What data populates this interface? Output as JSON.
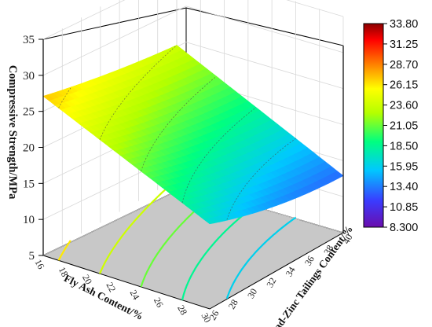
{
  "chart_data": {
    "type": "surface",
    "title": "",
    "xlabel": "Fly Ash Content/%",
    "ylabel": "Lead-Zinc Tailings Content/%",
    "zlabel": "Compressive Strength/MPa",
    "x_ticks": [
      "16",
      "18",
      "20",
      "22",
      "24",
      "26",
      "28",
      "30"
    ],
    "y_ticks": [
      "26",
      "28",
      "30",
      "32",
      "34",
      "36",
      "38",
      "40"
    ],
    "z_ticks": [
      "5",
      "10",
      "15",
      "20",
      "25",
      "30",
      "35"
    ],
    "xlim": [
      16,
      30
    ],
    "ylim": [
      26,
      40
    ],
    "zlim": [
      5,
      35
    ],
    "colorbar": {
      "min": 8.3,
      "max": 33.8,
      "labels": [
        "33.80",
        "31.25",
        "28.70",
        "26.15",
        "23.60",
        "21.05",
        "18.50",
        "15.95",
        "13.40",
        "10.85",
        "8.300"
      ]
    },
    "surface_corners": [
      {
        "x": 16,
        "y": 26,
        "z": 27.1
      },
      {
        "x": 16,
        "y": 40,
        "z": 23.6
      },
      {
        "x": 30,
        "y": 26,
        "z": 16.8
      },
      {
        "x": 30,
        "y": 40,
        "z": 12.9
      }
    ],
    "surface_minimum": {
      "x": 30,
      "y": 37,
      "z": 12.2
    },
    "projected_contours": true,
    "grid": true
  }
}
